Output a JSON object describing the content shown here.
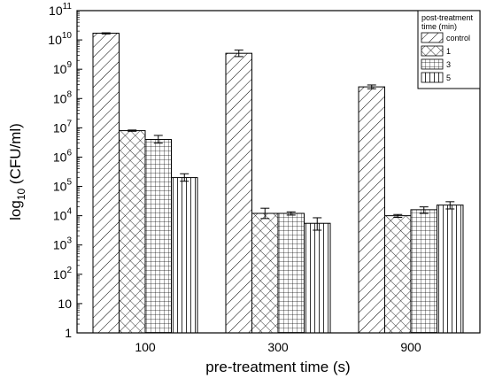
{
  "chart_data": {
    "type": "bar",
    "title": "",
    "xlabel": "pre-treatment time (s)",
    "ylabel_main": "log",
    "ylabel_sub": "10",
    "ylabel_rest": " (CFU/ml)",
    "yscale": "log",
    "ylim": [
      1,
      100000000000
    ],
    "yticks": [
      {
        "value": 1,
        "base": "1",
        "exp": ""
      },
      {
        "value": 10,
        "base": "10",
        "exp": ""
      },
      {
        "value": 100,
        "base": "10",
        "exp": "2"
      },
      {
        "value": 1000,
        "base": "10",
        "exp": "3"
      },
      {
        "value": 10000,
        "base": "10",
        "exp": "4"
      },
      {
        "value": 100000,
        "base": "10",
        "exp": "5"
      },
      {
        "value": 1000000,
        "base": "10",
        "exp": "6"
      },
      {
        "value": 10000000,
        "base": "10",
        "exp": "7"
      },
      {
        "value": 100000000,
        "base": "10",
        "exp": "8"
      },
      {
        "value": 1000000000,
        "base": "10",
        "exp": "9"
      },
      {
        "value": 10000000000,
        "base": "10",
        "exp": "10"
      },
      {
        "value": 100000000000,
        "base": "10",
        "exp": "11"
      }
    ],
    "categories": [
      "100",
      "300",
      "900"
    ],
    "legend": {
      "title_line1": "post-treatment",
      "title_line2": "time (min)",
      "placement": "top-right"
    },
    "grid": false,
    "series": [
      {
        "name": "control",
        "pattern": "diag",
        "values": [
          17000000000,
          3500000000,
          250000000
        ],
        "errors": [
          [
            16000000000,
            17500000000
          ],
          [
            2700000000,
            4500000000
          ],
          [
            215000000,
            290000000
          ]
        ]
      },
      {
        "name": "1",
        "pattern": "cross",
        "values": [
          8000000,
          12000,
          10000
        ],
        "errors": [
          [
            7600000,
            8400000
          ],
          [
            8000,
            18000
          ],
          [
            8800,
            11000
          ]
        ]
      },
      {
        "name": "3",
        "pattern": "grid",
        "values": [
          4000000,
          12000,
          16000
        ],
        "errors": [
          [
            3000000,
            5500000
          ],
          [
            10500,
            13500
          ],
          [
            12000,
            20000
          ]
        ]
      },
      {
        "name": "5",
        "pattern": "vert",
        "values": [
          200000,
          5500,
          23000
        ],
        "errors": [
          [
            150000,
            270000
          ],
          [
            3200,
            8500
          ],
          [
            17000,
            30000
          ]
        ]
      }
    ]
  }
}
